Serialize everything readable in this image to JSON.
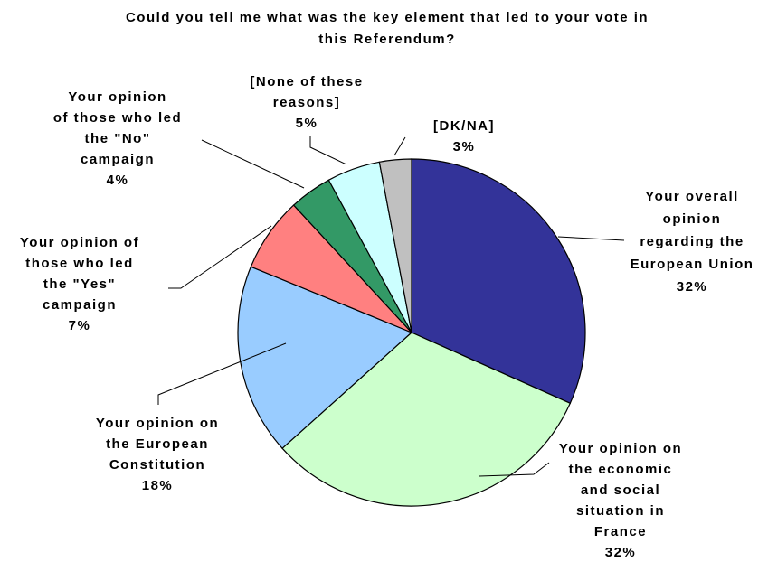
{
  "chart_data": {
    "type": "pie",
    "title": "Could you tell me what was the key element that led to your vote in this Referendum?",
    "title_lines": [
      "Could you tell me what was the key element that led to your vote in",
      "this Referendum?"
    ],
    "start_angle": "12 o'clock",
    "direction": "clockwise",
    "slices": [
      {
        "label": "Your overall opinion regarding the European Union",
        "label_lines": [
          "Your overall",
          "opinion",
          "regarding the",
          "European Union"
        ],
        "value": 32,
        "value_text": "32%",
        "color": "#333399"
      },
      {
        "label": "Your opinion on the economic and social situation in France",
        "label_lines": [
          "Your opinion on",
          "the economic",
          "and social",
          "situation in",
          "France"
        ],
        "value": 32,
        "value_text": "32%",
        "color": "#CCFFCC"
      },
      {
        "label": "Your opinion on the European Constitution",
        "label_lines": [
          "Your opinion on",
          "the European",
          "Constitution"
        ],
        "value": 18,
        "value_text": "18%",
        "color": "#99CCFF"
      },
      {
        "label": "Your opinion of those who led the \"Yes\" campaign",
        "label_lines": [
          "Your opinion of",
          "those who led",
          "the \"Yes\"",
          "campaign"
        ],
        "value": 7,
        "value_text": "7%",
        "color": "#FF8080"
      },
      {
        "label": "Your opinion of those who led the \"No\" campaign",
        "label_lines": [
          "Your opinion",
          "of those who led",
          "the \"No\"",
          "campaign"
        ],
        "value": 4,
        "value_text": "4%",
        "color": "#339966"
      },
      {
        "label": "[None of these reasons]",
        "label_lines": [
          "[None of these",
          "reasons]"
        ],
        "value": 5,
        "value_text": "5%",
        "color": "#CCFFFF"
      },
      {
        "label": "[DK/NA]",
        "label_lines": [
          "[DK/NA]"
        ],
        "value": 3,
        "value_text": "3%",
        "color": "#C0C0C0"
      }
    ]
  }
}
